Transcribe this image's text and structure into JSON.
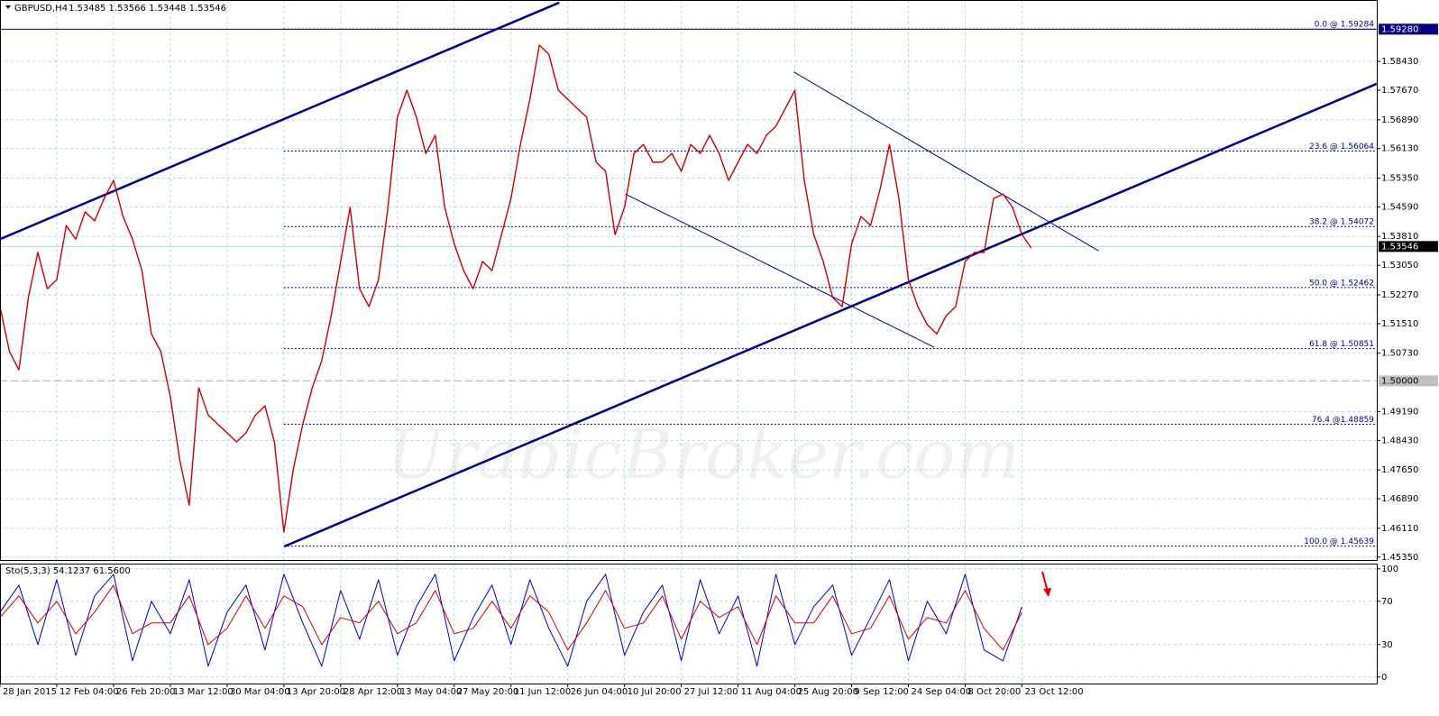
{
  "chart_data": {
    "type": "line",
    "title": "GBPUSD,H4",
    "quote": "1.53485 1.53566 1.53448 1.53546",
    "watermark": "UrabicBroker.com",
    "xlim": [
      0,
      145.5
    ],
    "xticks": [
      {
        "value": 0,
        "label": "28 Jan 2015"
      },
      {
        "value": 6,
        "label": "12 Feb 04:00"
      },
      {
        "value": 12,
        "label": "26 Feb 20:00"
      },
      {
        "value": 18,
        "label": "13 Mar 12:00"
      },
      {
        "value": 24,
        "label": "30 Mar 04:00"
      },
      {
        "value": 30,
        "label": "13 Apr 20:00"
      },
      {
        "value": 36,
        "label": "28 Apr 12:00"
      },
      {
        "value": 42,
        "label": "13 May 04:00"
      },
      {
        "value": 48,
        "label": "27 May 20:00"
      },
      {
        "value": 54,
        "label": "11 Jun 12:00"
      },
      {
        "value": 60,
        "label": "26 Jun 04:00"
      },
      {
        "value": 66,
        "label": "10 Jul 20:00"
      },
      {
        "value": 72,
        "label": "27 Jul 12:00"
      },
      {
        "value": 78,
        "label": "11 Aug 04:00"
      },
      {
        "value": 84,
        "label": "25 Aug 20:00"
      },
      {
        "value": 90,
        "label": "9 Sep 12:00"
      },
      {
        "value": 96,
        "label": "24 Sep 04:00"
      },
      {
        "value": 102,
        "label": "8 Oct 20:00"
      },
      {
        "value": 108,
        "label": "23 Oct 12:00"
      }
    ],
    "ylim": [
      1.4525,
      1.6005
    ],
    "yticks": [
      {
        "value": 1.5843,
        "label": "1.58430"
      },
      {
        "value": 1.5767,
        "label": "1.57670"
      },
      {
        "value": 1.5689,
        "label": "1.56890"
      },
      {
        "value": 1.5613,
        "label": "1.56130"
      },
      {
        "value": 1.5535,
        "label": "1.55350"
      },
      {
        "value": 1.5459,
        "label": "1.54590"
      },
      {
        "value": 1.5381,
        "label": "1.53810"
      },
      {
        "value": 1.5305,
        "label": "1.53050"
      },
      {
        "value": 1.5227,
        "label": "1.52270"
      },
      {
        "value": 1.5151,
        "label": "1.51510"
      },
      {
        "value": 1.5073,
        "label": "1.50730"
      },
      {
        "value": 1.4919,
        "label": "1.49190"
      },
      {
        "value": 1.4843,
        "label": "1.48430"
      },
      {
        "value": 1.4765,
        "label": "1.47650"
      },
      {
        "value": 1.4689,
        "label": "1.46890"
      },
      {
        "value": 1.4611,
        "label": "1.46110"
      },
      {
        "value": 1.4535,
        "label": "1.45350"
      }
    ],
    "grid": true,
    "series": [
      {
        "color": "#cc0000",
        "x": [
          0,
          1,
          2,
          3,
          4,
          5,
          6,
          7,
          8,
          9,
          10,
          11,
          12,
          13,
          14,
          15,
          16,
          17,
          18,
          19,
          20,
          21,
          22,
          23,
          24,
          25,
          26,
          27,
          28,
          29,
          30,
          31,
          32,
          33,
          34,
          35,
          36,
          37,
          38,
          39,
          40,
          41,
          42,
          43,
          44,
          45,
          46,
          47,
          48,
          49,
          50,
          51,
          52,
          53,
          54,
          55,
          56,
          57,
          58,
          59,
          60,
          61,
          62,
          63,
          64,
          65,
          66,
          67,
          68,
          69,
          70,
          71,
          72,
          73,
          74,
          75,
          76,
          77,
          78,
          79,
          80,
          81,
          82,
          83,
          84,
          85,
          86,
          87,
          88,
          89,
          90,
          91,
          92,
          93,
          94,
          95,
          96,
          97,
          98,
          99,
          100,
          101,
          102,
          103,
          104,
          105,
          106,
          107,
          108,
          109
        ],
        "values": [
          1.5196,
          1.5077,
          1.5029,
          1.522,
          1.5339,
          1.5243,
          1.5267,
          1.541,
          1.5374,
          1.5446,
          1.5422,
          1.5481,
          1.5529,
          1.5434,
          1.5374,
          1.5291,
          1.5124,
          1.5077,
          1.4958,
          1.4791,
          1.4672,
          1.4982,
          1.491,
          1.4886,
          1.4863,
          1.4839,
          1.4863,
          1.491,
          1.4934,
          1.4839,
          1.4601,
          1.4767,
          1.4886,
          1.4982,
          1.5053,
          1.5172,
          1.5315,
          1.5458,
          1.5243,
          1.5196,
          1.5267,
          1.5458,
          1.5696,
          1.5767,
          1.5696,
          1.56,
          1.5648,
          1.5458,
          1.5362,
          1.5291,
          1.5243,
          1.5315,
          1.5291,
          1.5386,
          1.5481,
          1.5624,
          1.5743,
          1.5886,
          1.5862,
          1.5767,
          1.5743,
          1.5719,
          1.5696,
          1.5577,
          1.5553,
          1.5386,
          1.5458,
          1.56,
          1.5624,
          1.5577,
          1.5577,
          1.56,
          1.5553,
          1.5624,
          1.56,
          1.5648,
          1.56,
          1.5529,
          1.5577,
          1.5624,
          1.56,
          1.5648,
          1.5672,
          1.5719,
          1.5767,
          1.5529,
          1.5386,
          1.5315,
          1.522,
          1.5196,
          1.5362,
          1.5434,
          1.541,
          1.5505,
          1.5624,
          1.5481,
          1.5267,
          1.5196,
          1.5148,
          1.5124,
          1.5172,
          1.5196,
          1.5315,
          1.5339,
          1.5339,
          1.5481,
          1.5493,
          1.5458,
          1.5386,
          1.535
        ]
      }
    ],
    "price_markers": [
      {
        "value": 1.5928,
        "label": "1.59280",
        "color": "#000080",
        "line_color": "#000080"
      },
      {
        "value": 1.53546,
        "label": "1.53546",
        "color": "#000000",
        "line_color": "#b8d8e0"
      },
      {
        "value": 1.5,
        "label": "1.50000",
        "color": "#c0c0c0",
        "line_color": "#b0b0b0"
      }
    ],
    "fibonacci": {
      "anchor_x": 30,
      "levels": [
        {
          "value": 1.59284,
          "label": "0.0 @ 1.59284"
        },
        {
          "value": 1.56064,
          "label": "23.6 @ 1.56064"
        },
        {
          "value": 1.54072,
          "label": "38.2 @ 1.54072"
        },
        {
          "value": 1.52462,
          "label": "50.0 @ 1.52462"
        },
        {
          "value": 1.50851,
          "label": "61.8 @ 1.50851"
        },
        {
          "value": 1.48859,
          "label": "76.4 @1.48859"
        },
        {
          "value": 1.45639,
          "label": "100.0 @ 1.45639"
        }
      ]
    },
    "trendlines": [
      {
        "x": [
          0,
          59.1
        ],
        "y": [
          1.5374,
          1.5998
        ],
        "width": 2.5
      },
      {
        "x": [
          30.03,
          145.5
        ],
        "y": [
          1.4563,
          1.5784
        ],
        "width": 2.5
      },
      {
        "x": [
          83.9,
          116.1
        ],
        "y": [
          1.5815,
          1.5343
        ],
        "width": 1
      },
      {
        "x": [
          66.1,
          98.7
        ],
        "y": [
          1.5493,
          1.5089
        ],
        "width": 1
      }
    ],
    "stochastic": {
      "title": "Sto(5,3,3) 54.1237 61.5600",
      "ylim": [
        -6,
        104
      ],
      "yticks": [
        0,
        30,
        70,
        100
      ],
      "x": [
        0,
        2,
        4,
        6,
        8,
        10,
        12,
        14,
        16,
        18,
        20,
        22,
        24,
        26,
        28,
        30,
        32,
        34,
        36,
        38,
        40,
        42,
        44,
        46,
        48,
        50,
        52,
        54,
        56,
        58,
        60,
        62,
        64,
        66,
        68,
        70,
        72,
        74,
        76,
        78,
        80,
        82,
        84,
        86,
        88,
        90,
        92,
        94,
        96,
        98,
        100,
        102,
        104,
        106,
        108
      ],
      "series": [
        {
          "color": "#0000cc",
          "values": [
            60,
            85,
            30,
            90,
            20,
            75,
            95,
            15,
            70,
            40,
            90,
            10,
            60,
            85,
            25,
            95,
            50,
            10,
            80,
            35,
            90,
            20,
            65,
            95,
            15,
            55,
            85,
            30,
            90,
            45,
            10,
            70,
            95,
            20,
            60,
            85,
            15,
            90,
            40,
            75,
            10,
            95,
            30,
            65,
            85,
            20,
            55,
            90,
            15,
            70,
            40,
            95,
            25,
            15,
            65
          ]
        },
        {
          "color": "#cc0000",
          "values": [
            55,
            75,
            50,
            70,
            40,
            60,
            85,
            40,
            50,
            50,
            75,
            30,
            45,
            75,
            45,
            75,
            65,
            30,
            55,
            50,
            70,
            40,
            50,
            80,
            40,
            45,
            70,
            45,
            75,
            60,
            25,
            50,
            80,
            45,
            50,
            75,
            35,
            70,
            55,
            65,
            30,
            75,
            50,
            50,
            75,
            40,
            45,
            75,
            35,
            55,
            50,
            80,
            45,
            25,
            60
          ]
        }
      ]
    }
  }
}
